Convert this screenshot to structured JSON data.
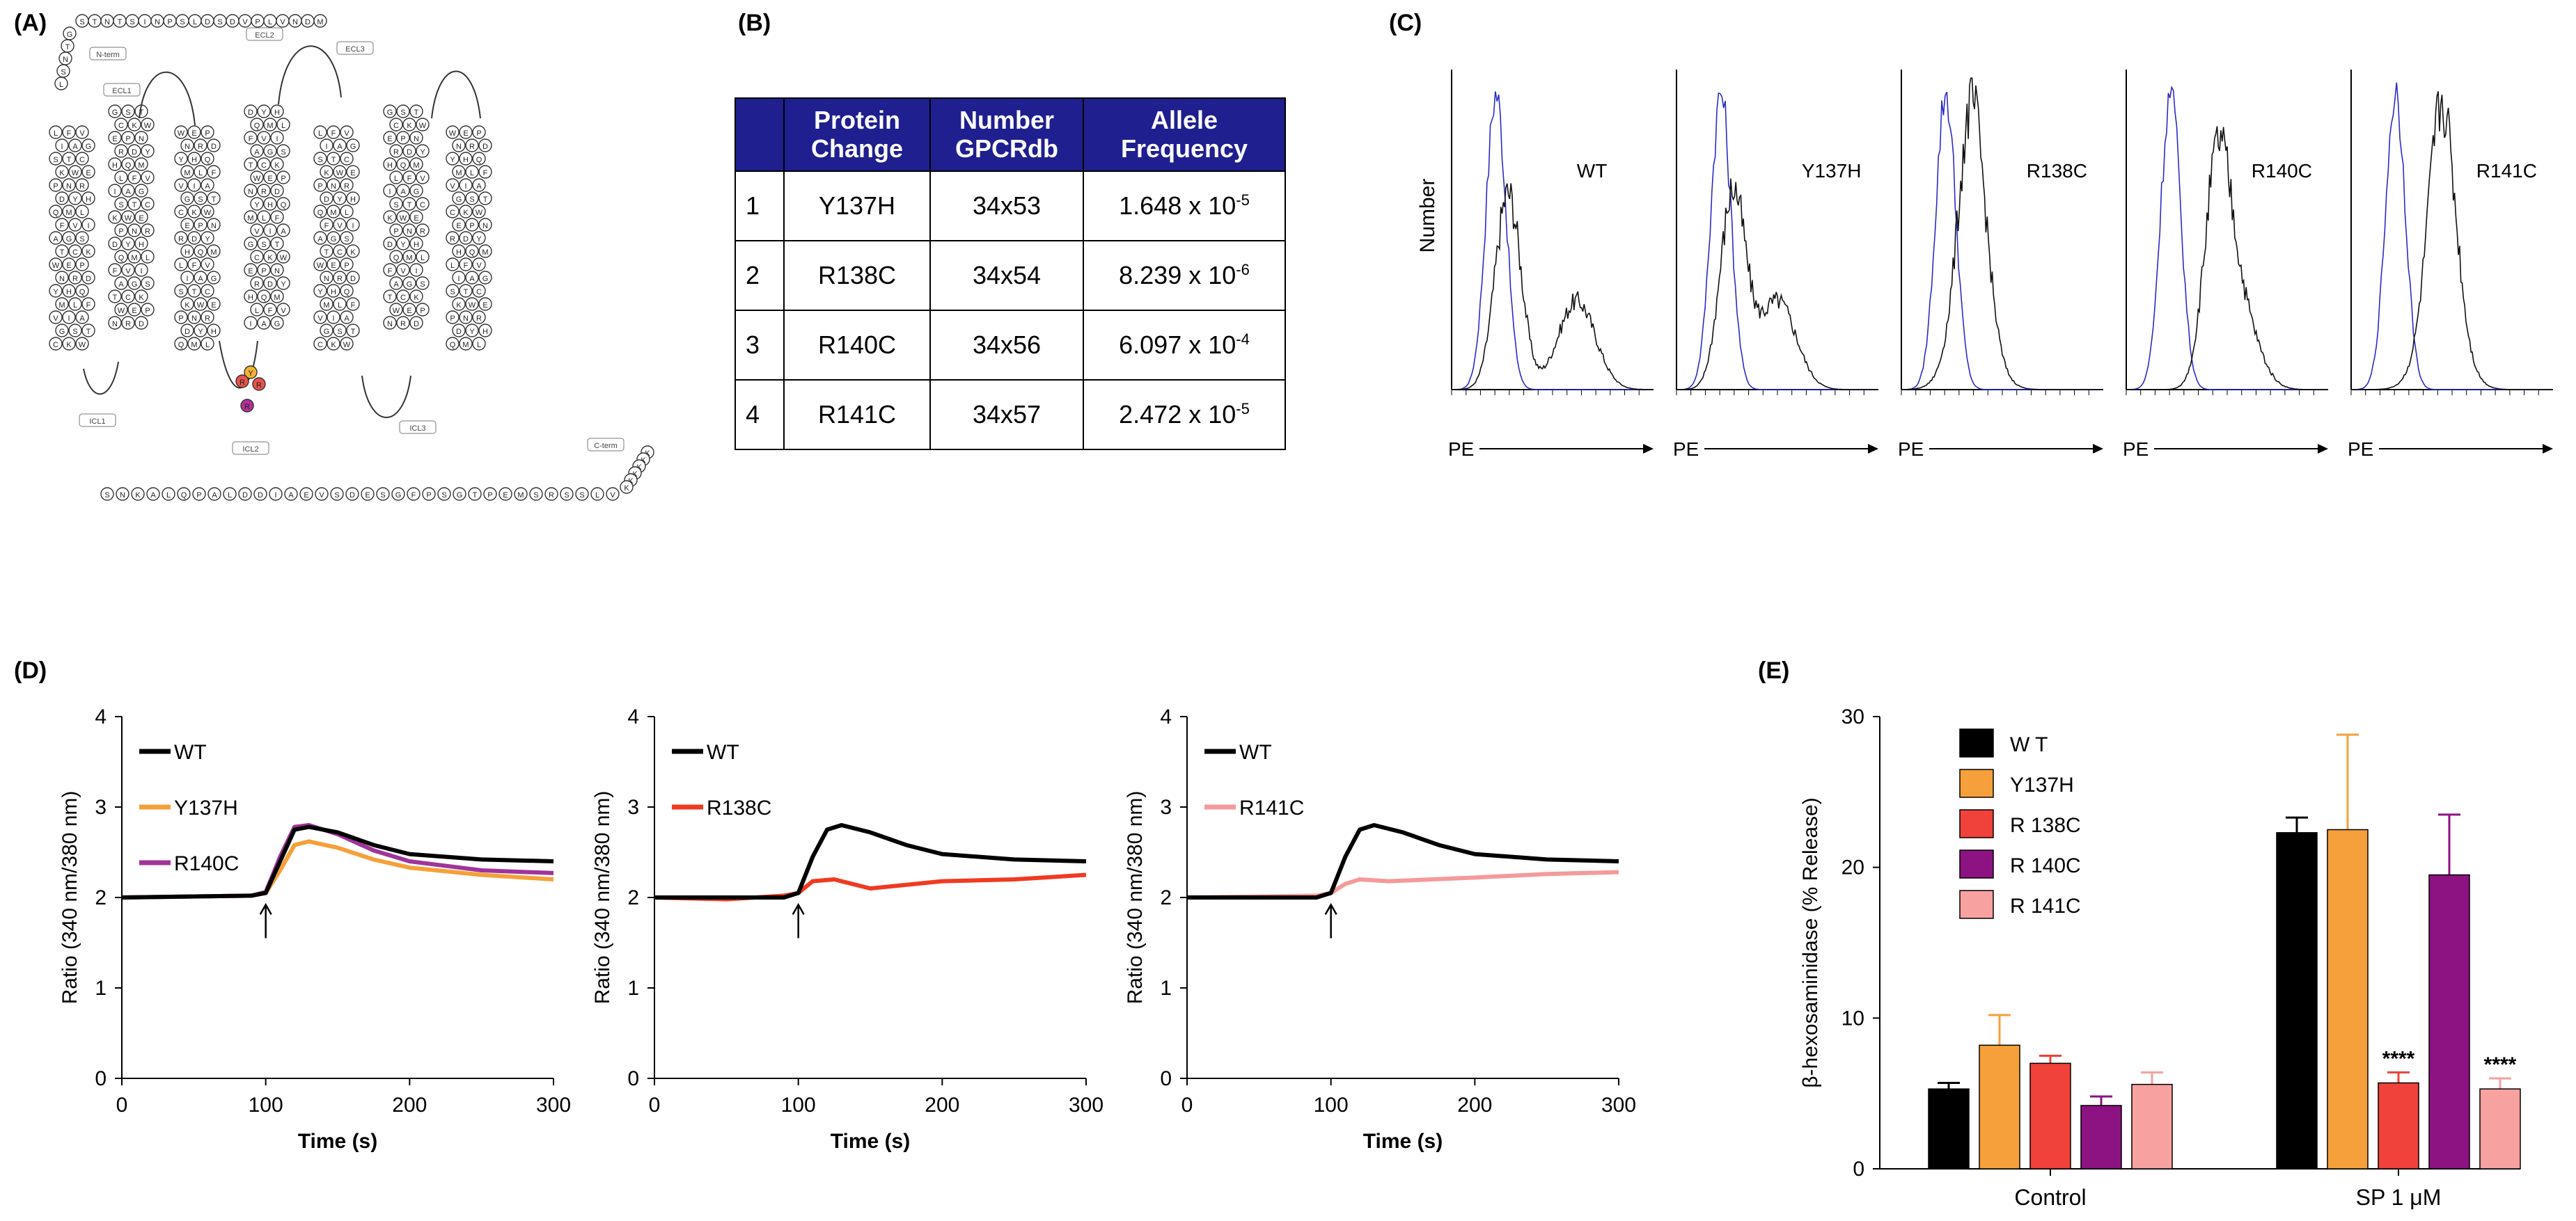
{
  "panel_labels": [
    "(A)",
    "(B)",
    "(C)",
    "(D)",
    "(E)"
  ],
  "panel_a": {
    "nterm_seq": "MDNVLPVDSDLSPNISTNTS",
    "loop_labels": [
      "N-term",
      "ECL1",
      "ECL2",
      "ECL3",
      "ICL1",
      "ICL2",
      "ICL3",
      "C-term"
    ],
    "highlight_residues": [
      {
        "letter": "Y",
        "color": "#f2b233"
      },
      {
        "letter": "R",
        "color": "#e8534a"
      },
      {
        "letter": "R",
        "color": "#e8534a"
      },
      {
        "letter": "R",
        "color": "#b3329a"
      }
    ],
    "cterm_seq": "VLSSRSMEPTGSPFGSEDSVEAIDDLAPQLAKNS"
  },
  "table": {
    "headers": [
      "",
      "Protein Change",
      "Number GPCRdb",
      "Allele Frequency"
    ],
    "rows": [
      {
        "idx": "1",
        "change": "Y137H",
        "gpcrdb": "34x53",
        "freq_base": "1.648 x 10",
        "freq_exp": "-5"
      },
      {
        "idx": "2",
        "change": "R138C",
        "gpcrdb": "34x54",
        "freq_base": "8.239 x 10",
        "freq_exp": "-6"
      },
      {
        "idx": "3",
        "change": "R140C",
        "gpcrdb": "34x56",
        "freq_base": "6.097 x 10",
        "freq_exp": "-4"
      },
      {
        "idx": "4",
        "change": "R141C",
        "gpcrdb": "34x57",
        "freq_base": "2.472 x 10",
        "freq_exp": "-5"
      }
    ],
    "header_color": "#1f1f8f"
  },
  "chart_data": [
    {
      "panel": "C",
      "type": "line",
      "ylabel": "Number",
      "xlabel": "PE",
      "subplots": [
        {
          "label": "WT",
          "peak_black": 0.28,
          "shoulder_black": 0.62
        },
        {
          "label": "Y137H",
          "peak_black": 0.28,
          "shoulder_black": 0.5
        },
        {
          "label": "R138C",
          "peak_black": 0.35,
          "shoulder_black": 0.35
        },
        {
          "label": "R140C",
          "peak_black": 0.45,
          "shoulder_black": 0.55
        },
        {
          "label": "R141C",
          "peak_black": 0.45,
          "shoulder_black": 0.45
        }
      ],
      "series_colors": {
        "control": "#2b2bc8",
        "stained": "#111111"
      }
    },
    {
      "panel": "D",
      "type": "line",
      "xlabel": "Time (s)",
      "ylabel": "Ratio (340 nm/380 nm)",
      "xlim": [
        0,
        300
      ],
      "ylim": [
        0,
        4
      ],
      "xticks": [
        "0",
        "100",
        "200",
        "300"
      ],
      "yticks": [
        "0",
        "1",
        "2",
        "3",
        "4"
      ],
      "arrow_x": 100,
      "subplots": [
        {
          "series": [
            {
              "name": "WT",
              "color": "#000000",
              "x": [
                0,
                90,
                100,
                110,
                120,
                130,
                150,
                175,
                200,
                250,
                300
              ],
              "y": [
                2.0,
                2.02,
                2.05,
                2.4,
                2.75,
                2.78,
                2.72,
                2.58,
                2.48,
                2.42,
                2.4
              ]
            },
            {
              "name": "Y137H",
              "color": "#f5a03a",
              "x": [
                0,
                90,
                100,
                110,
                120,
                130,
                150,
                175,
                200,
                250,
                300
              ],
              "y": [
                2.0,
                2.02,
                2.05,
                2.3,
                2.58,
                2.62,
                2.55,
                2.42,
                2.33,
                2.25,
                2.2
              ]
            },
            {
              "name": "R140C",
              "color": "#a0349a",
              "x": [
                0,
                90,
                100,
                110,
                120,
                130,
                150,
                175,
                200,
                250,
                300
              ],
              "y": [
                2.0,
                2.02,
                2.06,
                2.45,
                2.78,
                2.8,
                2.7,
                2.52,
                2.4,
                2.3,
                2.27
              ]
            }
          ]
        },
        {
          "series": [
            {
              "name": "WT",
              "color": "#000000",
              "x": [
                0,
                90,
                100,
                110,
                120,
                130,
                150,
                175,
                200,
                250,
                300
              ],
              "y": [
                2.0,
                2.0,
                2.05,
                2.45,
                2.75,
                2.8,
                2.72,
                2.58,
                2.48,
                2.42,
                2.4
              ]
            },
            {
              "name": "R138C",
              "color": "#f03a22",
              "x": [
                0,
                50,
                90,
                100,
                110,
                125,
                150,
                200,
                250,
                300
              ],
              "y": [
                2.0,
                1.98,
                2.02,
                2.05,
                2.18,
                2.2,
                2.1,
                2.18,
                2.2,
                2.25
              ]
            }
          ]
        },
        {
          "series": [
            {
              "name": "WT",
              "color": "#000000",
              "x": [
                0,
                90,
                100,
                110,
                120,
                130,
                150,
                175,
                200,
                250,
                300
              ],
              "y": [
                2.0,
                2.0,
                2.05,
                2.45,
                2.75,
                2.8,
                2.72,
                2.58,
                2.48,
                2.42,
                2.4
              ]
            },
            {
              "name": "R141C",
              "color": "#f49a9a",
              "x": [
                0,
                90,
                100,
                110,
                120,
                140,
                200,
                250,
                300
              ],
              "y": [
                2.0,
                2.02,
                2.05,
                2.15,
                2.2,
                2.18,
                2.22,
                2.26,
                2.28
              ]
            }
          ]
        }
      ]
    },
    {
      "panel": "E",
      "type": "bar",
      "ylabel": "β-hexosaminidase (% Release)",
      "ylim": [
        0,
        30
      ],
      "yticks": [
        "0",
        "10",
        "20",
        "30"
      ],
      "categories": [
        "Control",
        "SP 1 μM"
      ],
      "series": [
        {
          "name": "W T",
          "color": "#000000",
          "values": [
            5.3,
            22.3
          ],
          "errors": [
            0.4,
            1.0
          ]
        },
        {
          "name": "Y137H",
          "color": "#f5a03a",
          "values": [
            8.2,
            22.5
          ],
          "errors": [
            2.0,
            6.3
          ]
        },
        {
          "name": "R 138C",
          "color": "#f0413a",
          "values": [
            7.0,
            5.7
          ],
          "errors": [
            0.5,
            0.7
          ]
        },
        {
          "name": "R 140C",
          "color": "#8c1381",
          "values": [
            4.2,
            19.5
          ],
          "errors": [
            0.6,
            4.0
          ]
        },
        {
          "name": "R 141C",
          "color": "#f7a1a1",
          "values": [
            5.6,
            5.3
          ],
          "errors": [
            0.8,
            0.7
          ]
        }
      ],
      "annotations": [
        {
          "series": 2,
          "category": 1,
          "text": "****"
        },
        {
          "series": 4,
          "category": 1,
          "text": "****"
        }
      ],
      "legend": "top-left"
    }
  ]
}
